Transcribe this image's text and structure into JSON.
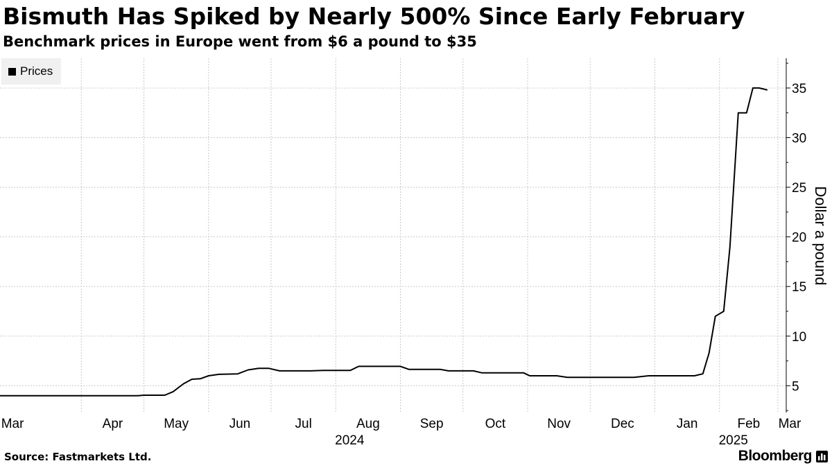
{
  "title": "Bismuth Has Spiked by Nearly 500% Since Early February",
  "subtitle": "Benchmark prices in Europe went from $6 a pound to $35",
  "legend": {
    "label": "Prices"
  },
  "footer": {
    "source": "Source: Fastmarkets Ltd.",
    "brand": "Bloomberg"
  },
  "colors": {
    "line": "#000000",
    "grid": "#c8c8c8",
    "legend_bg": "#f0f0f0"
  },
  "chart_data": {
    "type": "line",
    "title": "Bismuth Has Spiked by Nearly 500% Since Early February",
    "subtitle": "Benchmark prices in Europe went from $6 a pound to $35",
    "xlabel": "",
    "ylabel": "Dollar a pound",
    "y_axis_side": "right",
    "ylim": [
      2.3,
      38
    ],
    "yticks": [
      5,
      10,
      15,
      20,
      25,
      30,
      35
    ],
    "xlim": [
      "2024-02-22",
      "2025-03-05"
    ],
    "month_ticks": [
      {
        "date": "2024-03-01",
        "label": "Mar"
      },
      {
        "date": "2024-04-01",
        "label": "Apr"
      },
      {
        "date": "2024-05-01",
        "label": "May"
      },
      {
        "date": "2024-06-01",
        "label": "Jun"
      },
      {
        "date": "2024-07-01",
        "label": "Jul"
      },
      {
        "date": "2024-08-01",
        "label": "Aug"
      },
      {
        "date": "2024-09-01",
        "label": "Sep"
      },
      {
        "date": "2024-10-01",
        "label": "Oct"
      },
      {
        "date": "2024-11-01",
        "label": "Nov"
      },
      {
        "date": "2024-12-01",
        "label": "Dec"
      },
      {
        "date": "2025-01-01",
        "label": "Jan"
      },
      {
        "date": "2025-02-01",
        "label": "Feb"
      },
      {
        "date": "2025-03-01",
        "label": "Mar"
      }
    ],
    "year_labels": [
      {
        "date": "2024-08-01",
        "label": "2024"
      },
      {
        "date": "2025-02-01",
        "label": "2025"
      }
    ],
    "grid": true,
    "legend_position": "top-left",
    "series": [
      {
        "name": "Prices",
        "color": "#000000",
        "points": [
          [
            "2024-02-22",
            4.0
          ],
          [
            "2024-04-28",
            4.0
          ],
          [
            "2024-05-01",
            4.05
          ],
          [
            "2024-05-11",
            4.05
          ],
          [
            "2024-05-15",
            4.4
          ],
          [
            "2024-05-20",
            5.2
          ],
          [
            "2024-05-24",
            5.65
          ],
          [
            "2024-05-28",
            5.7
          ],
          [
            "2024-06-01",
            6.0
          ],
          [
            "2024-06-06",
            6.15
          ],
          [
            "2024-06-15",
            6.2
          ],
          [
            "2024-06-20",
            6.6
          ],
          [
            "2024-06-25",
            6.75
          ],
          [
            "2024-06-30",
            6.75
          ],
          [
            "2024-07-05",
            6.5
          ],
          [
            "2024-07-20",
            6.5
          ],
          [
            "2024-07-26",
            6.55
          ],
          [
            "2024-08-08",
            6.55
          ],
          [
            "2024-08-12",
            6.95
          ],
          [
            "2024-09-01",
            6.95
          ],
          [
            "2024-09-05",
            6.65
          ],
          [
            "2024-09-20",
            6.65
          ],
          [
            "2024-09-24",
            6.5
          ],
          [
            "2024-10-06",
            6.5
          ],
          [
            "2024-10-10",
            6.3
          ],
          [
            "2024-10-30",
            6.3
          ],
          [
            "2024-11-02",
            6.0
          ],
          [
            "2024-11-15",
            6.0
          ],
          [
            "2024-11-20",
            5.85
          ],
          [
            "2024-12-01",
            5.85
          ],
          [
            "2024-12-22",
            5.85
          ],
          [
            "2024-12-29",
            6.0
          ],
          [
            "2025-01-20",
            6.0
          ],
          [
            "2025-01-24",
            6.2
          ],
          [
            "2025-01-27",
            8.3
          ],
          [
            "2025-01-30",
            12.0
          ],
          [
            "2025-02-03",
            12.5
          ],
          [
            "2025-02-06",
            19.0
          ],
          [
            "2025-02-10",
            32.5
          ],
          [
            "2025-02-14",
            32.5
          ],
          [
            "2025-02-17",
            35.0
          ],
          [
            "2025-02-20",
            35.0
          ],
          [
            "2025-02-24",
            34.8
          ]
        ]
      }
    ]
  }
}
